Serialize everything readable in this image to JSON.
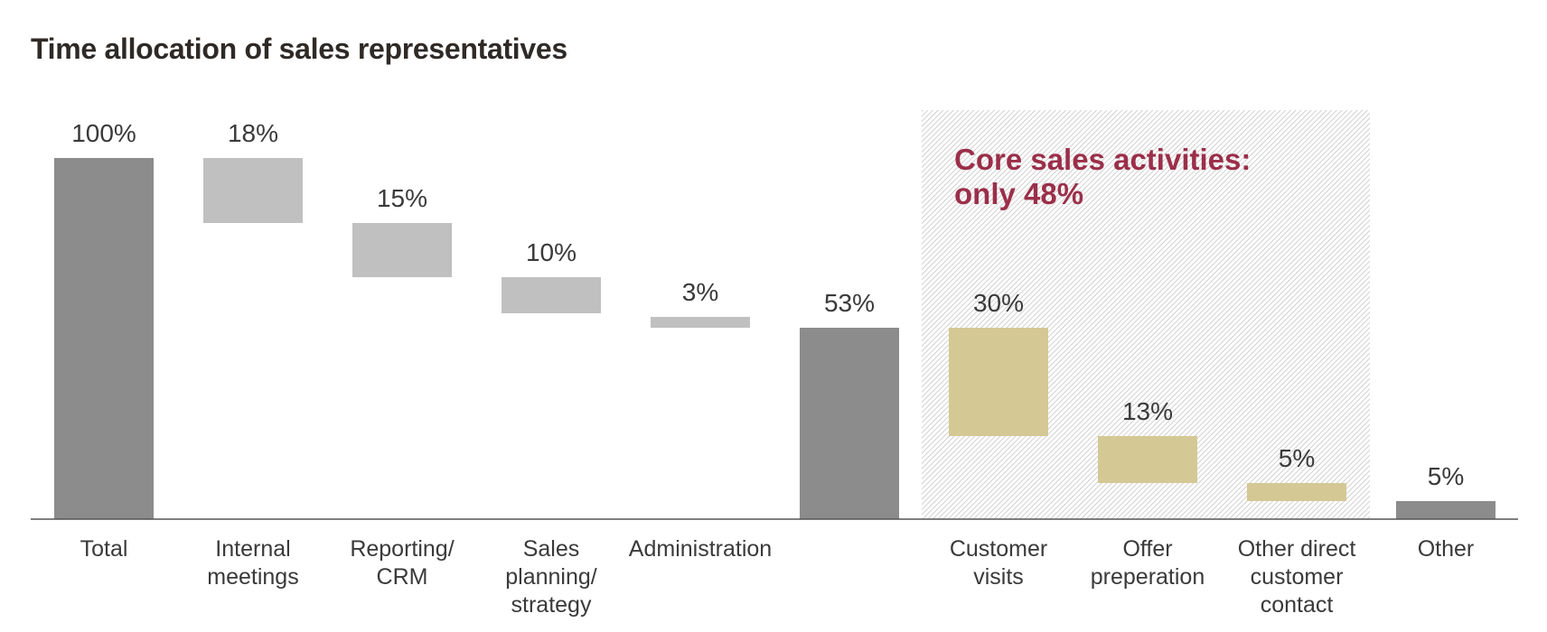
{
  "title": "Time allocation of sales representatives",
  "callout": {
    "lines": [
      "Core sales activities:",
      "only 48%"
    ]
  },
  "colors": {
    "total": "#8c8c8c",
    "non_core": "#c0c0c0",
    "core": "#d4c895",
    "callout_text": "#9b2f49",
    "axis": "#555555",
    "text": "#3a3a3a",
    "hatch": "#bdbdbd"
  },
  "chart_data": {
    "type": "bar",
    "subtype": "waterfall",
    "title": "Time allocation of sales representatives",
    "ylim": [
      0,
      100
    ],
    "grid": false,
    "legend": "none",
    "highlight": {
      "label": "Core sales activities: only 48%",
      "categories": [
        "Customer visits",
        "Offer preperation",
        "Other direct customer contact"
      ]
    },
    "bars": [
      {
        "label_lines": [
          "Total"
        ],
        "value": 100,
        "value_label": "100%",
        "base": 0,
        "kind": "total"
      },
      {
        "label_lines": [
          "Internal",
          "meetings"
        ],
        "value": 18,
        "value_label": "18%",
        "base": 82,
        "kind": "non_core"
      },
      {
        "label_lines": [
          "Reporting/",
          "CRM"
        ],
        "value": 15,
        "value_label": "15%",
        "base": 67,
        "kind": "non_core"
      },
      {
        "label_lines": [
          "Sales",
          "planning/",
          "strategy"
        ],
        "value": 10,
        "value_label": "10%",
        "base": 57,
        "kind": "non_core"
      },
      {
        "label_lines": [
          "Administration"
        ],
        "value": 3,
        "value_label": "3%",
        "base": 53,
        "kind": "non_core"
      },
      {
        "label_lines": [],
        "value": 53,
        "value_label": "53%",
        "base": 0,
        "kind": "total"
      },
      {
        "label_lines": [
          "Customer",
          "visits"
        ],
        "value": 30,
        "value_label": "30%",
        "base": 23,
        "kind": "core"
      },
      {
        "label_lines": [
          "Offer",
          "preperation"
        ],
        "value": 13,
        "value_label": "13%",
        "base": 10,
        "kind": "core"
      },
      {
        "label_lines": [
          "Other direct",
          "customer",
          "contact"
        ],
        "value": 5,
        "value_label": "5%",
        "base": 5,
        "kind": "core"
      },
      {
        "label_lines": [
          "Other"
        ],
        "value": 5,
        "value_label": "5%",
        "base": 0,
        "kind": "total"
      }
    ]
  }
}
